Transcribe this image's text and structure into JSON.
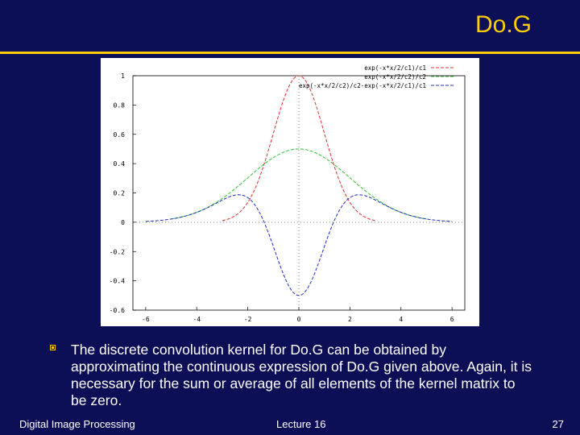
{
  "slide": {
    "title": "Do.G",
    "bullet": "The discrete convolution kernel for Do.G can be obtained by approximating the continuous expression of Do.G given above. Again, it is necessary for the sum or average of all elements of the kernel matrix to be zero.",
    "footer_left": "Digital Image Processing",
    "footer_center": "Lecture 16",
    "footer_right": "27",
    "accent_color": "#ffcc00",
    "background_color": "#0c0f56"
  },
  "chart_data": {
    "type": "line",
    "title": "",
    "xlabel": "",
    "ylabel": "",
    "xlim": [
      -6.5,
      6.5
    ],
    "ylim": [
      -0.6,
      1.0
    ],
    "x_ticks": [
      "-6",
      "-4",
      "-2",
      "0",
      "2",
      "4",
      "6"
    ],
    "x_tick_values": [
      -6,
      -4,
      -2,
      0,
      2,
      4,
      6
    ],
    "y_ticks": [
      "1",
      "0.8",
      "0.6",
      "0.4",
      "0.2",
      "0",
      "-0.2",
      "-0.4",
      "-0.6"
    ],
    "y_tick_values": [
      1,
      0.8,
      0.6,
      0.4,
      0.2,
      0,
      -0.2,
      -0.4,
      -0.6
    ],
    "legend_position": "top-right",
    "series": [
      {
        "name": "exp(-x*x/2/c1)/c1",
        "color": "#e03030",
        "sigma": 1,
        "x_range": [
          -3,
          3
        ]
      },
      {
        "name": "exp(-x*x/2/c2)/c2",
        "color": "#30c030",
        "sigma": 2,
        "x_range": [
          -5,
          5
        ]
      },
      {
        "name": "exp(-x*x/2/c2)/c2-exp(-x*x/2/c1)/c1",
        "color": "#2030c0",
        "x_range": [
          -6,
          6
        ]
      }
    ]
  }
}
